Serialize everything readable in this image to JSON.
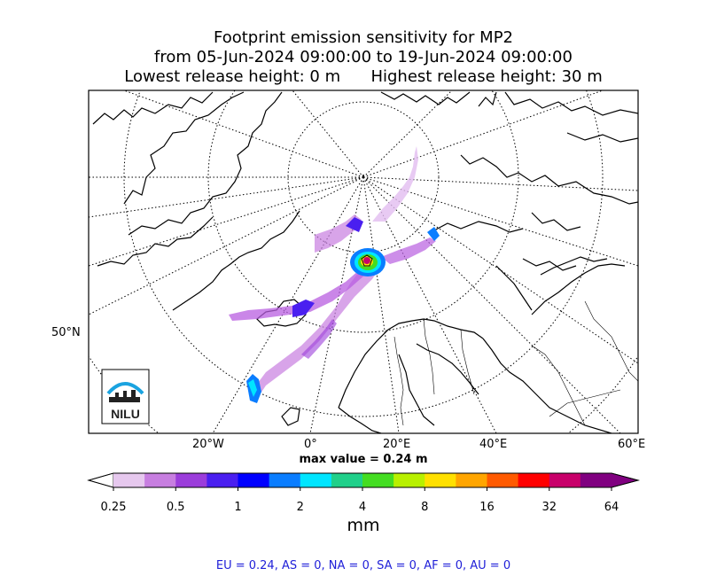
{
  "title": {
    "line1": "Footprint emission sensitivity for MP2",
    "line2": "from 05-Jun-2024 09:00:00 to 19-Jun-2024 09:00:00",
    "line3": "Lowest release height: 0 m      Highest release height: 30 m"
  },
  "map": {
    "lat_label": "50°N",
    "lon_labels": [
      "20°W",
      "0°",
      "20°E",
      "40°E",
      "60°E"
    ],
    "max_value": "max value = 0.24 m",
    "logo_text": "NILU"
  },
  "colorbar": {
    "ticks": [
      "0.25",
      "0.5",
      "1",
      "2",
      "4",
      "8",
      "16",
      "32",
      "64"
    ],
    "unit": "mm",
    "colors": [
      "#ffffff",
      "#e6c8ee",
      "#c77ee0",
      "#9b3ddb",
      "#4a1ff0",
      "#0000ff",
      "#0a7dff",
      "#00e5ff",
      "#20d08a",
      "#44dd22",
      "#b8f000",
      "#ffe000",
      "#ffa500",
      "#ff5a00",
      "#ff0000",
      "#c8006a",
      "#800080"
    ]
  },
  "summary": "EU = 0.24,  AS = 0,  NA = 0,  SA = 0,  AF = 0,  AU = 0"
}
